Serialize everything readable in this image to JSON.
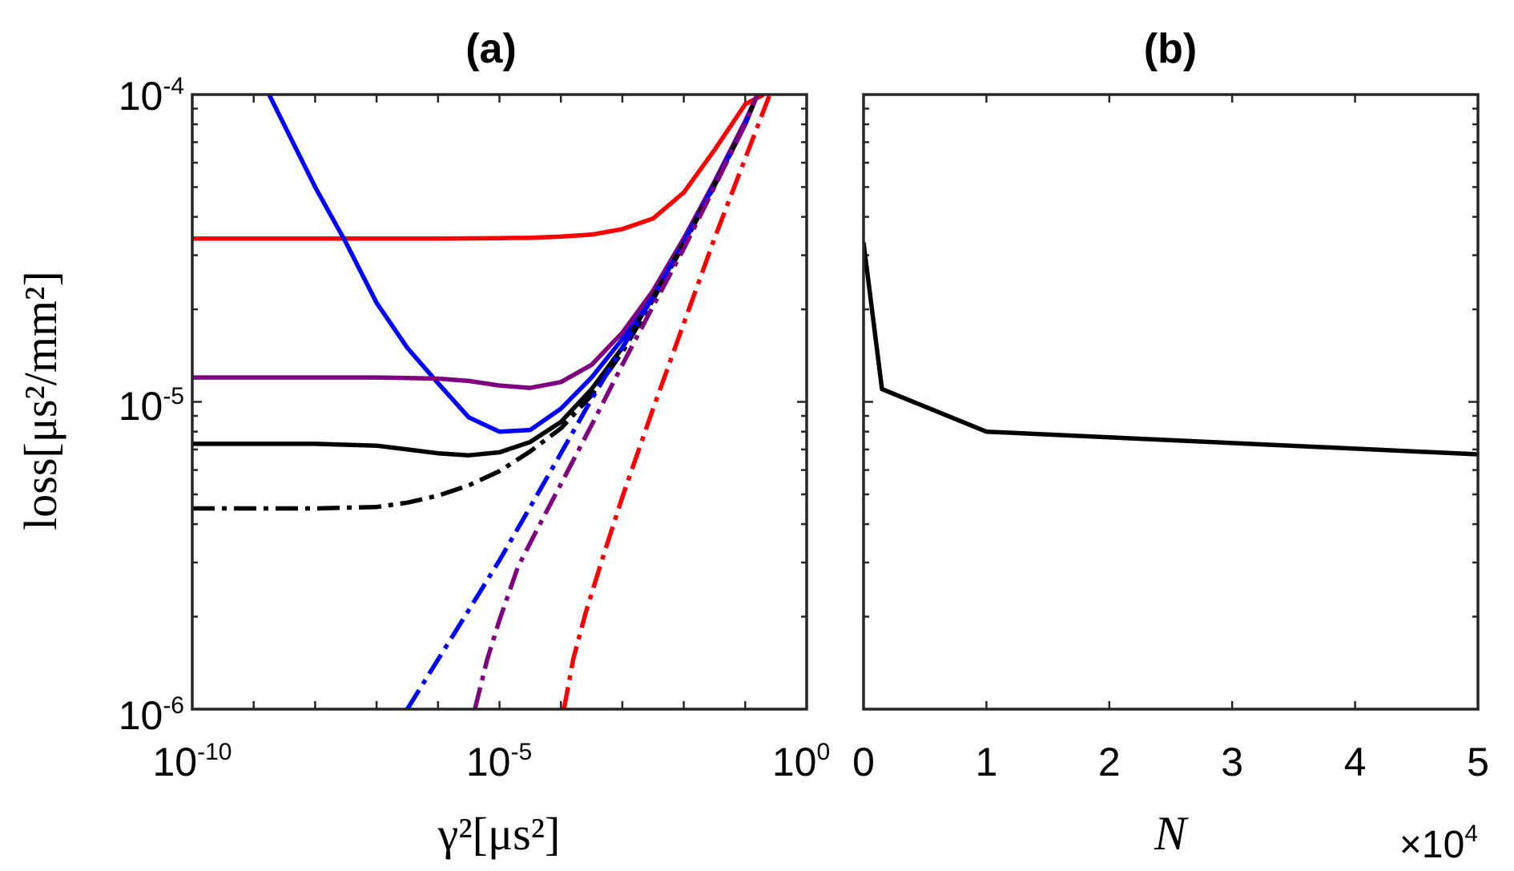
{
  "chart_data": [
    {
      "panel": "a",
      "type": "line",
      "title": "(a)",
      "xscale": "log",
      "yscale": "log",
      "xlabel": "γ²[μs²]",
      "ylabel": "loss[μs²/mm²]",
      "xlim_exp": [
        -10,
        0
      ],
      "ylim_exp": [
        -6,
        -4
      ],
      "xtick_labels": [
        {
          "exp": -10,
          "base": "10",
          "sup": "-10"
        },
        {
          "exp": -5,
          "base": "10",
          "sup": "-5"
        },
        {
          "exp": 0,
          "base": "10",
          "sup": "0"
        }
      ],
      "ytick_labels": [
        {
          "exp": -4,
          "base": "10",
          "sup": "-4"
        },
        {
          "exp": -5,
          "base": "10",
          "sup": "-5"
        },
        {
          "exp": -6,
          "base": "10",
          "sup": "-6"
        }
      ],
      "series": [
        {
          "name": "red-solid",
          "color": "#ff0000",
          "dash": "solid",
          "x_exp": [
            -10,
            -9,
            -8,
            -7,
            -6,
            -5,
            -4.5,
            -4,
            -3.5,
            -3,
            -2.5,
            -2,
            -1.5,
            -1,
            -0.7
          ],
          "y": [
            3.4e-05,
            3.4e-05,
            3.4e-05,
            3.4e-05,
            3.4e-05,
            3.41e-05,
            3.42e-05,
            3.45e-05,
            3.5e-05,
            3.65e-05,
            3.95e-05,
            4.8e-05,
            6.6e-05,
            9.3e-05,
            0.0001
          ]
        },
        {
          "name": "blue-solid",
          "color": "#0000ff",
          "dash": "solid",
          "x_exp": [
            -8.75,
            -8,
            -7.5,
            -7,
            -6.5,
            -6,
            -5.5,
            -5,
            -4.5,
            -4,
            -3.5,
            -3,
            -2.5,
            -2,
            -1.5,
            -1,
            -0.8
          ],
          "y": [
            0.0001,
            5e-05,
            3.3e-05,
            2.1e-05,
            1.5e-05,
            1.15e-05,
            8.9e-06,
            8e-06,
            8.1e-06,
            9.5e-06,
            1.2e-05,
            1.6e-05,
            2.3e-05,
            3.4e-05,
            5.2e-05,
            8.2e-05,
            0.0001
          ]
        },
        {
          "name": "purple-solid",
          "color": "#7f007f",
          "dash": "solid",
          "x_exp": [
            -10,
            -8,
            -7,
            -6,
            -5.5,
            -5,
            -4.5,
            -4,
            -3.5,
            -3,
            -2.5,
            -2,
            -1.5,
            -1,
            -0.8
          ],
          "y": [
            1.2e-05,
            1.2e-05,
            1.2e-05,
            1.19e-05,
            1.17e-05,
            1.13e-05,
            1.11e-05,
            1.16e-05,
            1.32e-05,
            1.68e-05,
            2.3e-05,
            3.4e-05,
            5.2e-05,
            8.2e-05,
            0.0001
          ]
        },
        {
          "name": "black-solid",
          "color": "#000000",
          "dash": "solid",
          "x_exp": [
            -10,
            -8,
            -7,
            -6.5,
            -6,
            -5.5,
            -5,
            -4.5,
            -4,
            -3.5,
            -3,
            -2.5,
            -2,
            -1.5,
            -1,
            -0.8
          ],
          "y": [
            7.3e-06,
            7.3e-06,
            7.2e-06,
            7e-06,
            6.8e-06,
            6.7e-06,
            6.85e-06,
            7.4e-06,
            8.6e-06,
            1.1e-05,
            1.5e-05,
            2.2e-05,
            3.3e-05,
            5.1e-05,
            8e-05,
            0.0001
          ]
        },
        {
          "name": "black-dashdot",
          "color": "#000000",
          "dash": "dashdot",
          "x_exp": [
            -10,
            -8,
            -7,
            -6.5,
            -6,
            -5.5,
            -5,
            -4.5,
            -4,
            -3.5,
            -3,
            -2.5,
            -2,
            -1.5,
            -1,
            -0.8
          ],
          "y": [
            4.5e-06,
            4.5e-06,
            4.55e-06,
            4.7e-06,
            4.95e-06,
            5.35e-06,
            5.95e-06,
            6.9e-06,
            8.2e-06,
            1.05e-05,
            1.45e-05,
            2.15e-05,
            3.25e-05,
            5.05e-05,
            8e-05,
            0.0001
          ]
        },
        {
          "name": "blue-dashdot",
          "color": "#0000ff",
          "dash": "dashdot",
          "x_exp": [
            -6.5,
            -6,
            -5.5,
            -5,
            -4.5,
            -4,
            -3.5,
            -3,
            -2.5,
            -2,
            -1.5,
            -1,
            -0.8
          ],
          "y": [
            1e-06,
            1.45e-06,
            2.1e-06,
            3.05e-06,
            4.55e-06,
            6.8e-06,
            1.02e-05,
            1.5e-05,
            2.2e-05,
            3.3e-05,
            5.1e-05,
            8e-05,
            0.0001
          ]
        },
        {
          "name": "purple-dashdot",
          "color": "#7f007f",
          "dash": "dashdot",
          "x_exp": [
            -5.4,
            -5.2,
            -5,
            -4.7,
            -4.4,
            -4,
            -3.5,
            -3,
            -2.5,
            -2,
            -1.5,
            -1,
            -0.8
          ],
          "y": [
            1e-06,
            1.45e-06,
            1.95e-06,
            2.9e-06,
            3.8e-06,
            5.4e-06,
            8.4e-06,
            1.32e-05,
            2.05e-05,
            3.15e-05,
            5e-05,
            8e-05,
            0.0001
          ]
        },
        {
          "name": "red-dashdot",
          "color": "#ff0000",
          "dash": "dashdot",
          "x_exp": [
            -3.95,
            -3.8,
            -3.6,
            -3.3,
            -3,
            -2.5,
            -2,
            -1.5,
            -1,
            -0.6
          ],
          "y": [
            1e-06,
            1.45e-06,
            2.05e-06,
            3.2e-06,
            4.9e-06,
            9.5e-06,
            1.8e-05,
            3.4e-05,
            6.2e-05,
            0.0001
          ]
        }
      ]
    },
    {
      "panel": "b",
      "type": "line",
      "title": "(b)",
      "xscale": "linear",
      "yscale": "log",
      "xlabel": "N",
      "multiplier": "×10",
      "multiplier_sup": "4",
      "xlim": [
        0,
        50000
      ],
      "ylim_exp": [
        -6,
        -4
      ],
      "xtick_labels": [
        "0",
        "1",
        "2",
        "3",
        "4",
        "5"
      ],
      "series": [
        {
          "name": "black-solid",
          "color": "#000000",
          "x": [
            0,
            1500,
            10000,
            50000
          ],
          "y": [
            3.3e-05,
            1.1e-05,
            8e-06,
            6.75e-06
          ]
        }
      ]
    }
  ]
}
